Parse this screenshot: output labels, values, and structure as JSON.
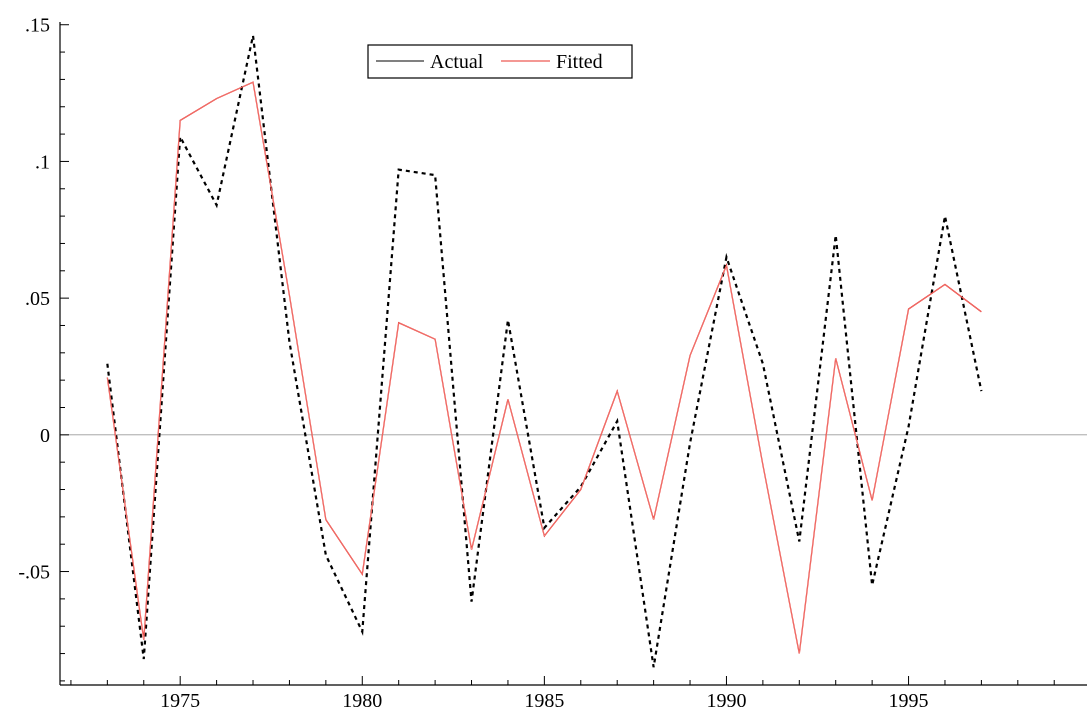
{
  "chart_data": {
    "type": "line",
    "title": "",
    "xlabel": "",
    "ylabel": "",
    "xlim": [
      1971.7,
      1999.9
    ],
    "ylim": [
      -0.0915,
      0.151
    ],
    "grid": false,
    "zero_line": true,
    "legend_position": "top-center",
    "x": [
      1973,
      1974,
      1975,
      1976,
      1977,
      1978,
      1979,
      1980,
      1981,
      1982,
      1983,
      1984,
      1985,
      1986,
      1987,
      1988,
      1989,
      1990,
      1991,
      1992,
      1993,
      1994,
      1995,
      1996,
      1997
    ],
    "x_ticks": [
      1975,
      1980,
      1985,
      1990,
      1995
    ],
    "x_tick_labels": [
      "1975",
      "1980",
      "1985",
      "1990",
      "1995"
    ],
    "y_ticks": [
      0.15,
      0.1,
      0.05,
      0,
      -0.05
    ],
    "y_tick_labels": [
      ".15",
      ".1",
      ".05",
      "0",
      "-.05"
    ],
    "series": [
      {
        "name": "Actual",
        "color": "#000000",
        "style": "dashed",
        "values": [
          0.026,
          -0.082,
          0.109,
          0.084,
          0.146,
          0.034,
          -0.044,
          -0.072,
          0.097,
          0.095,
          -0.061,
          0.042,
          -0.034,
          -0.019,
          0.005,
          -0.085,
          -0.003,
          0.065,
          0.026,
          -0.039,
          0.073,
          -0.055,
          0.003,
          0.08,
          0.016
        ]
      },
      {
        "name": "Fitted",
        "color": "#e8302a",
        "style": "solid",
        "values": [
          0.021,
          -0.075,
          0.115,
          0.123,
          0.129,
          0.051,
          -0.031,
          -0.051,
          0.041,
          0.035,
          -0.042,
          0.013,
          -0.037,
          -0.02,
          0.016,
          -0.031,
          0.029,
          0.062,
          -0.011,
          -0.08,
          0.028,
          -0.024,
          0.046,
          0.055,
          0.045
        ]
      }
    ]
  }
}
